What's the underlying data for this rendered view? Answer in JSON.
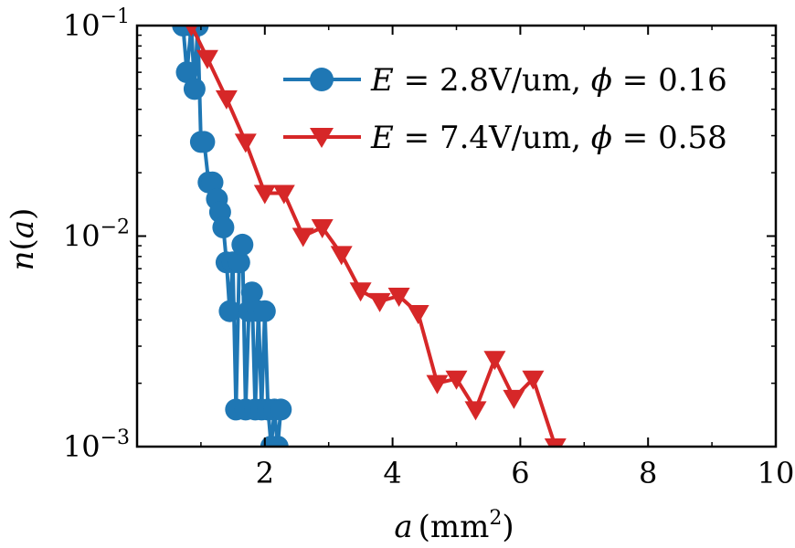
{
  "chart_data": {
    "type": "line",
    "xlabel": "a (mm²)",
    "ylabel": "n(a)",
    "xlim": [
      0,
      10
    ],
    "ylim": [
      0.001,
      0.1
    ],
    "yscale": "log",
    "grid": false,
    "legend_position": "top-right",
    "xticks": [
      2,
      4,
      6,
      8,
      10
    ],
    "xtick_labels": [
      "2",
      "4",
      "6",
      "8",
      "10"
    ],
    "yticks": [
      0.001,
      0.01,
      0.1
    ],
    "ytick_labels": [
      {
        "base": "10",
        "exp": "−3"
      },
      {
        "base": "10",
        "exp": "−2"
      },
      {
        "base": "10",
        "exp": "−1"
      }
    ],
    "axis_label_parts": {
      "x_var": "a",
      "x_unit": "(mm",
      "x_unit_exp": "2",
      "x_unit_close": ")",
      "y_func": "n",
      "y_open": "(",
      "y_var": "a",
      "y_close": ")"
    },
    "series": [
      {
        "name": "E = 2.8V/um, ϕ = 0.16",
        "legend_parts": {
          "e": "E",
          "eq1": " = ",
          "val1": "2.8V/um, ",
          "phi": "ϕ",
          "eq2": " = ",
          "val2": "0.16"
        },
        "color": "#1f77b4",
        "marker": "circle",
        "x": [
          0.72,
          0.78,
          0.85,
          0.9,
          0.95,
          1.0,
          1.05,
          1.12,
          1.18,
          1.25,
          1.3,
          1.35,
          1.4,
          1.45,
          1.5,
          1.55,
          1.6,
          1.65,
          1.7,
          1.75,
          1.8,
          1.85,
          1.9,
          1.95,
          2.0,
          2.05,
          2.1,
          2.15,
          2.2,
          2.25
        ],
        "y": [
          0.1,
          0.06,
          0.1,
          0.05,
          0.1,
          0.028,
          0.028,
          0.018,
          0.018,
          0.015,
          0.013,
          0.011,
          0.0075,
          0.0044,
          0.0075,
          0.0015,
          0.0075,
          0.0091,
          0.0015,
          0.0044,
          0.0054,
          0.0015,
          0.0044,
          0.0015,
          0.0044,
          0.0015,
          0.001,
          0.0015,
          0.001,
          0.0015
        ]
      },
      {
        "name": "E = 7.4V/um, ϕ = 0.58",
        "legend_parts": {
          "e": "E",
          "eq1": " = ",
          "val1": "7.4V/um, ",
          "phi": "ϕ",
          "eq2": " = ",
          "val2": "0.58"
        },
        "color": "#d62728",
        "marker": "triangle-down",
        "x": [
          0.85,
          1.1,
          1.4,
          1.7,
          2.0,
          2.3,
          2.6,
          2.9,
          3.2,
          3.5,
          3.8,
          4.1,
          4.4,
          4.7,
          5.0,
          5.3,
          5.6,
          5.9,
          6.2,
          6.55
        ],
        "y": [
          0.1,
          0.07,
          0.045,
          0.028,
          0.016,
          0.016,
          0.01,
          0.011,
          0.0082,
          0.0055,
          0.0049,
          0.0052,
          0.0043,
          0.002,
          0.0021,
          0.0015,
          0.0026,
          0.0017,
          0.0021,
          0.001
        ]
      }
    ]
  }
}
